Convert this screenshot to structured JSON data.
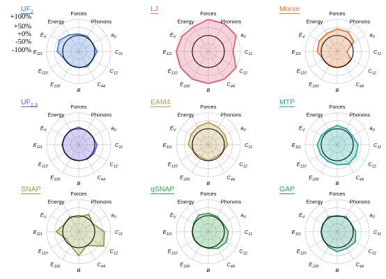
{
  "chart_data": {
    "type": "radar",
    "scale_labels": [
      "+100%",
      "+50%",
      "+0%",
      "-50%",
      "-100%"
    ],
    "scale_values": [
      100,
      50,
      0,
      -50,
      -100
    ],
    "axes": [
      {
        "key": "Forces",
        "main": "Forces",
        "sub": "",
        "italic": false
      },
      {
        "key": "Phonons",
        "main": "Phonons",
        "sub": "",
        "italic": false
      },
      {
        "key": "a0",
        "main": "a",
        "sub": "0",
        "italic": true
      },
      {
        "key": "C11",
        "main": "C",
        "sub": "11",
        "italic": true
      },
      {
        "key": "C12",
        "main": "C",
        "sub": "12",
        "italic": true
      },
      {
        "key": "C44",
        "main": "C",
        "sub": "44",
        "italic": true
      },
      {
        "key": "B",
        "main": "B",
        "sub": "",
        "italic": true
      },
      {
        "key": "E100",
        "main": "E",
        "sub": "100",
        "italic": true
      },
      {
        "key": "E110",
        "main": "E",
        "sub": "110",
        "italic": true
      },
      {
        "key": "E111",
        "main": "E",
        "sub": "111",
        "italic": true
      },
      {
        "key": "Ev",
        "main": "E",
        "sub": "V",
        "italic": true
      },
      {
        "key": "Energy",
        "main": "Energy",
        "sub": "",
        "italic": false
      }
    ],
    "panels": [
      {
        "name": "UF",
        "sub": "2",
        "color": "#4a7fd6",
        "values": [
          10,
          10,
          0,
          15,
          0,
          10,
          0,
          0,
          0,
          35,
          40,
          20
        ]
      },
      {
        "name": "LJ",
        "sub": "",
        "color": "#e0607a",
        "values": [
          100,
          100,
          100,
          55,
          100,
          100,
          100,
          100,
          100,
          100,
          90,
          80
        ]
      },
      {
        "name": "Morse",
        "sub": "",
        "color": "#e07a3a",
        "values": [
          40,
          40,
          20,
          -40,
          0,
          0,
          0,
          0,
          0,
          25,
          30,
          30
        ]
      },
      {
        "name": "UF",
        "sub": "2,3",
        "color": "#6a5ad6",
        "values": [
          10,
          0,
          0,
          15,
          10,
          5,
          0,
          0,
          0,
          5,
          0,
          5
        ]
      },
      {
        "name": "EAM4",
        "sub": "",
        "color": "#b89a4a",
        "values": [
          40,
          25,
          20,
          20,
          0,
          -10,
          0,
          -10,
          0,
          25,
          25,
          30
        ]
      },
      {
        "name": "MTP",
        "sub": "",
        "color": "#1aaba5",
        "values": [
          20,
          15,
          10,
          30,
          35,
          40,
          25,
          20,
          20,
          25,
          15,
          10
        ]
      },
      {
        "name": "SNAP",
        "sub": "",
        "color": "#8aa040",
        "values": [
          -10,
          25,
          0,
          60,
          80,
          0,
          50,
          0,
          -10,
          40,
          0,
          10
        ]
      },
      {
        "name": "qSNAP",
        "sub": "",
        "color": "#3aa050",
        "values": [
          15,
          10,
          5,
          25,
          30,
          20,
          5,
          0,
          0,
          0,
          5,
          20
        ]
      },
      {
        "name": "GAP",
        "sub": "",
        "color": "#2a9a80",
        "values": [
          -5,
          10,
          0,
          15,
          30,
          20,
          25,
          10,
          0,
          0,
          0,
          10
        ]
      }
    ]
  }
}
